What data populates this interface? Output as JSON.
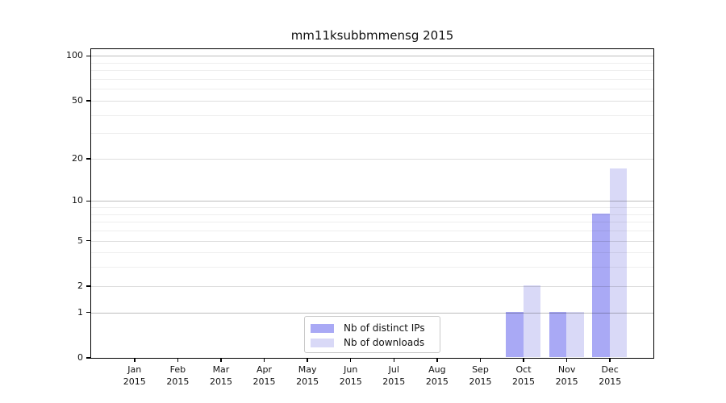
{
  "chart_data": {
    "type": "bar",
    "title": "mm11ksubbmmensg 2015",
    "categories": [
      "Jan",
      "Feb",
      "Mar",
      "Apr",
      "May",
      "Jun",
      "Jul",
      "Aug",
      "Sep",
      "Oct",
      "Nov",
      "Dec"
    ],
    "category_sublabel": "2015",
    "series": [
      {
        "name": "Nb of distinct IPs",
        "color": "#a9a9f5",
        "values": [
          0,
          0,
          0,
          0,
          0,
          0,
          0,
          0,
          0,
          1,
          1,
          8
        ]
      },
      {
        "name": "Nb of downloads",
        "color": "#d9d9f7",
        "values": [
          0,
          0,
          0,
          0,
          0,
          0,
          0,
          0,
          0,
          2,
          1,
          17
        ]
      }
    ],
    "yscale": "log1p",
    "ylim": [
      0,
      111
    ],
    "yticks": [
      0,
      1,
      2,
      5,
      10,
      20,
      50,
      100
    ],
    "minor_gridlines": [
      3,
      4,
      6,
      7,
      8,
      9,
      30,
      40,
      60,
      70,
      80,
      90
    ],
    "grid": true,
    "legend_position": "lower center"
  },
  "colors": {
    "bar_distinct_ips": "#a9a9f5",
    "bar_downloads": "#d9d9f7",
    "gridline_decade": "#c2c2c2",
    "gridline_labeled": "#dedede",
    "gridline_minor": "#efefef",
    "spine": "#000000",
    "background": "#ffffff"
  }
}
